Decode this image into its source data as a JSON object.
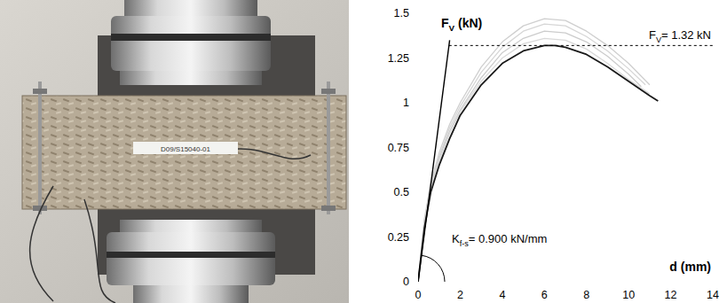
{
  "chart_data": {
    "type": "line",
    "xlim": [
      0,
      14
    ],
    "xticks": [
      0,
      2,
      4,
      6,
      8,
      10,
      12,
      14
    ],
    "ylim": [
      0,
      1.5
    ],
    "yticks": [
      0,
      0.25,
      0.5,
      0.75,
      1,
      1.25,
      1.5
    ],
    "grid": false,
    "ylabel": {
      "base": "F",
      "sub": "V",
      "rest": " (kN)"
    },
    "xlabel": "d (mm)",
    "series": [
      {
        "color": "#cfcfcf",
        "x": [
          0,
          0.3,
          0.6,
          1,
          1.5,
          2,
          3,
          4,
          5,
          6,
          7,
          8,
          9,
          10,
          11
        ],
        "values": [
          0,
          0.35,
          0.55,
          0.72,
          0.88,
          1.0,
          1.2,
          1.34,
          1.43,
          1.47,
          1.46,
          1.4,
          1.32,
          1.22,
          1.1
        ]
      },
      {
        "color": "#d6d6d6",
        "x": [
          0,
          0.3,
          0.6,
          1,
          1.5,
          2,
          3,
          4,
          5,
          6,
          7,
          8,
          9,
          10,
          10.8
        ],
        "values": [
          0,
          0.34,
          0.54,
          0.7,
          0.86,
          0.98,
          1.17,
          1.31,
          1.4,
          1.44,
          1.43,
          1.37,
          1.29,
          1.19,
          1.1
        ]
      },
      {
        "color": "#cccccc",
        "x": [
          0,
          0.3,
          0.6,
          1,
          1.5,
          2,
          3,
          4,
          5,
          6,
          7,
          8,
          9,
          10,
          10.6
        ],
        "values": [
          0,
          0.33,
          0.53,
          0.69,
          0.84,
          0.96,
          1.14,
          1.28,
          1.36,
          1.4,
          1.39,
          1.34,
          1.26,
          1.16,
          1.09
        ]
      },
      {
        "color": "#d9d9d9",
        "x": [
          0,
          0.3,
          0.6,
          1,
          1.5,
          2,
          3,
          4,
          5,
          6,
          7,
          8,
          9,
          10,
          11
        ],
        "values": [
          0,
          0.32,
          0.52,
          0.67,
          0.83,
          0.95,
          1.12,
          1.25,
          1.33,
          1.36,
          1.35,
          1.3,
          1.22,
          1.13,
          1.05
        ]
      },
      {
        "color": "#1a1a1a",
        "x": [
          0,
          0.3,
          0.6,
          1,
          1.5,
          2,
          3,
          4,
          5,
          6,
          6.5,
          7,
          8,
          9,
          10,
          11,
          11.4
        ],
        "values": [
          0,
          0.3,
          0.5,
          0.65,
          0.8,
          0.93,
          1.1,
          1.22,
          1.29,
          1.32,
          1.32,
          1.31,
          1.27,
          1.2,
          1.12,
          1.04,
          1.01
        ]
      }
    ],
    "annotations": {
      "peak": {
        "value": 1.32,
        "label": {
          "base": "F",
          "sub": "V",
          "rest": "= 1.32 kN"
        }
      },
      "stiffness": {
        "value": 0.9,
        "x_end": 1.5,
        "label": {
          "base": "K",
          "sub": "f-s",
          "rest": "= 0.900 kN/mm"
        }
      }
    }
  },
  "photo": {
    "specimen_label": "D09/S15040-01"
  }
}
